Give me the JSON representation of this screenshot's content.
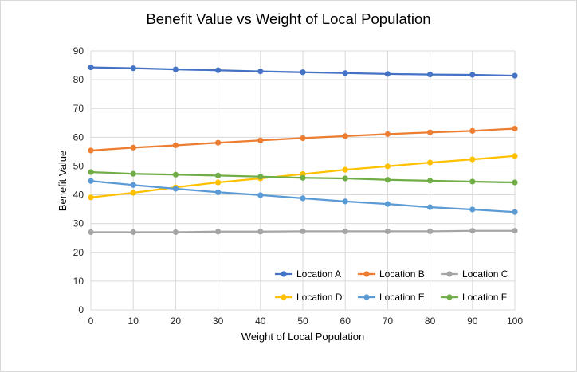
{
  "chart_data": {
    "type": "line",
    "title": "Benefit Value vs Weight of Local Population",
    "xlabel": "Weight of Local Population",
    "ylabel": "Benefit Value",
    "x": [
      0,
      10,
      20,
      30,
      40,
      50,
      60,
      70,
      80,
      90,
      100
    ],
    "xlim": [
      0,
      100
    ],
    "ylim": [
      0,
      90
    ],
    "yticks": [
      0,
      10,
      20,
      30,
      40,
      50,
      60,
      70,
      80,
      90
    ],
    "grid": true,
    "legend_position": "bottom-right",
    "series": [
      {
        "name": "Location A",
        "color": "#4472C4",
        "values": [
          84.3,
          84.0,
          83.6,
          83.3,
          82.9,
          82.6,
          82.3,
          82.0,
          81.8,
          81.7,
          81.4
        ]
      },
      {
        "name": "Location B",
        "color": "#ED7D31",
        "values": [
          55.4,
          56.4,
          57.2,
          58.1,
          58.9,
          59.7,
          60.4,
          61.1,
          61.7,
          62.2,
          63.0
        ]
      },
      {
        "name": "Location C",
        "color": "#A5A5A5",
        "values": [
          27.0,
          27.0,
          27.0,
          27.2,
          27.2,
          27.3,
          27.3,
          27.3,
          27.3,
          27.5,
          27.5
        ]
      },
      {
        "name": "Location D",
        "color": "#FFC000",
        "values": [
          39.1,
          40.7,
          42.6,
          44.3,
          45.7,
          47.2,
          48.7,
          49.9,
          51.2,
          52.3,
          53.5
        ]
      },
      {
        "name": "Location E",
        "color": "#5B9BD5",
        "values": [
          44.8,
          43.4,
          42.1,
          40.9,
          39.9,
          38.8,
          37.7,
          36.8,
          35.7,
          34.9,
          34.0
        ]
      },
      {
        "name": "Location F",
        "color": "#70AD47",
        "values": [
          47.9,
          47.3,
          47.0,
          46.7,
          46.3,
          45.9,
          45.7,
          45.2,
          44.9,
          44.6,
          44.3
        ]
      }
    ]
  }
}
